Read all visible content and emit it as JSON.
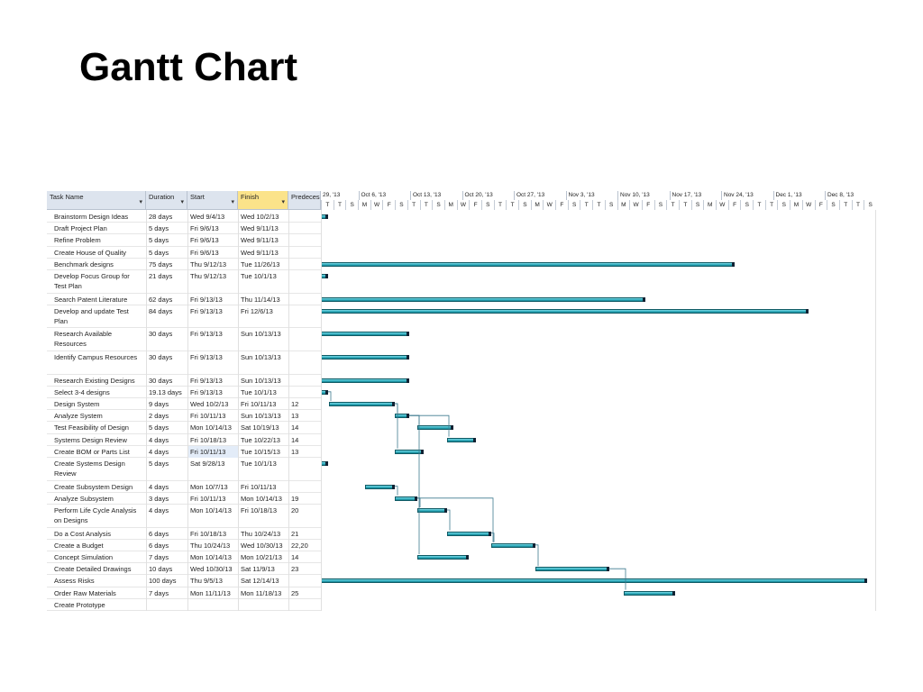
{
  "title": "Gantt Chart",
  "columns": {
    "task_name": "Task Name",
    "duration": "Duration",
    "start": "Start",
    "finish": "Finish",
    "predecessors": "Predecess"
  },
  "timeline": {
    "weeks": [
      "29, '13",
      "Oct 6, '13",
      "Oct 13, '13",
      "Oct 20, '13",
      "Oct 27, '13",
      "Nov 3, '13",
      "Nov 10, '13",
      "Nov 17, '13",
      "Nov 24, '13",
      "Dec 1, '13",
      "Dec 8, '13"
    ],
    "days": [
      "T",
      "T",
      "S",
      "M",
      "W",
      "F",
      "S",
      "T",
      "T",
      "S",
      "M",
      "W",
      "F",
      "S",
      "T",
      "T",
      "S",
      "M",
      "W",
      "F",
      "S",
      "T",
      "T",
      "S",
      "M",
      "W",
      "F",
      "S",
      "T",
      "T",
      "S",
      "M",
      "W",
      "F",
      "S",
      "T",
      "T",
      "S",
      "M",
      "W",
      "F",
      "S",
      "T",
      "T",
      "S"
    ]
  },
  "tasks": [
    {
      "name": "Brainstorm Design Ideas",
      "duration": "28 days",
      "start": "Wed 9/4/13",
      "finish": "Wed 10/2/13",
      "pred": "",
      "lines": 1,
      "bar": [
        356,
        364
      ]
    },
    {
      "name": "Draft Project Plan",
      "duration": "5 days",
      "start": "Fri 9/6/13",
      "finish": "Wed 9/11/13",
      "pred": "",
      "lines": 1,
      "bar": null
    },
    {
      "name": "Refine Problem",
      "duration": "5 days",
      "start": "Fri 9/6/13",
      "finish": "Wed 9/11/13",
      "pred": "",
      "lines": 1,
      "bar": null
    },
    {
      "name": "Create House of Quality",
      "duration": "5 days",
      "start": "Fri 9/6/13",
      "finish": "Wed 9/11/13",
      "pred": "",
      "lines": 1,
      "bar": null
    },
    {
      "name": "Benchmark designs",
      "duration": "75 days",
      "start": "Thu 9/12/13",
      "finish": "Tue 11/26/13",
      "pred": "",
      "lines": 1,
      "bar": [
        356,
        815
      ]
    },
    {
      "name": "Develop Focus Group for Test Plan",
      "duration": "21 days",
      "start": "Thu 9/12/13",
      "finish": "Tue 10/1/13",
      "pred": "",
      "lines": 2,
      "bar": [
        356,
        364
      ]
    },
    {
      "name": "Search Patent Literature",
      "duration": "62 days",
      "start": "Fri 9/13/13",
      "finish": "Thu 11/14/13",
      "pred": "",
      "lines": 1,
      "bar": [
        356,
        716
      ]
    },
    {
      "name": "Develop and update Test Plan",
      "duration": "84 days",
      "start": "Fri 9/13/13",
      "finish": "Fri 12/6/13",
      "pred": "",
      "lines": 2,
      "bar": [
        356,
        897
      ]
    },
    {
      "name": "Research Available Resources",
      "duration": "30 days",
      "start": "Fri 9/13/13",
      "finish": "Sun 10/13/13",
      "pred": "",
      "lines": 2,
      "bar": [
        356,
        454
      ]
    },
    {
      "name": "Identify Campus Resources",
      "duration": "30 days",
      "start": "Fri 9/13/13",
      "finish": "Sun 10/13/13",
      "pred": "",
      "lines": 2,
      "bar": [
        356,
        454
      ]
    },
    {
      "name": "Research Existing Designs",
      "duration": "30 days",
      "start": "Fri 9/13/13",
      "finish": "Sun 10/13/13",
      "pred": "",
      "lines": 1,
      "bar": [
        356,
        454
      ]
    },
    {
      "name": "Select 3-4 designs",
      "duration": "19.13 days",
      "start": "Fri 9/13/13",
      "finish": "Tue 10/1/13",
      "pred": "",
      "lines": 1,
      "bar": [
        356,
        364
      ]
    },
    {
      "name": "Design System",
      "duration": "9 days",
      "start": "Wed 10/2/13",
      "finish": "Fri 10/11/13",
      "pred": "12",
      "lines": 1,
      "bar": [
        365,
        438
      ]
    },
    {
      "name": "Analyze System",
      "duration": "2 days",
      "start": "Fri 10/11/13",
      "finish": "Sun 10/13/13",
      "pred": "13",
      "lines": 1,
      "bar": [
        438,
        454
      ]
    },
    {
      "name": "Test Feasibility of Design",
      "duration": "5 days",
      "start": "Mon 10/14/13",
      "finish": "Sat 10/19/13",
      "pred": "14",
      "lines": 1,
      "bar": [
        463,
        503
      ]
    },
    {
      "name": "Systems Design Review",
      "duration": "4 days",
      "start": "Fri 10/18/13",
      "finish": "Tue 10/22/13",
      "pred": "14",
      "lines": 1,
      "bar": [
        496,
        528
      ]
    },
    {
      "name": "Create BOM or Parts List",
      "duration": "4 days",
      "start": "Fri 10/11/13",
      "finish": "Tue 10/15/13",
      "pred": "13",
      "lines": 1,
      "bar": [
        438,
        470
      ],
      "selected": true
    },
    {
      "name": "Create Systems Design Review",
      "duration": "5 days",
      "start": "Sat 9/28/13",
      "finish": "Tue 10/1/13",
      "pred": "",
      "lines": 2,
      "bar": [
        356,
        364
      ]
    },
    {
      "name": "Create Subsystem Design",
      "duration": "4 days",
      "start": "Mon 10/7/13",
      "finish": "Fri 10/11/13",
      "pred": "",
      "lines": 1,
      "bar": [
        405,
        438
      ]
    },
    {
      "name": "Analyze Subsystem",
      "duration": "3 days",
      "start": "Fri 10/11/13",
      "finish": "Mon 10/14/13",
      "pred": "19",
      "lines": 1,
      "bar": [
        438,
        463
      ]
    },
    {
      "name": "Perform Life Cycle Analysis on Designs",
      "duration": "4 days",
      "start": "Mon 10/14/13",
      "finish": "Fri 10/18/13",
      "pred": "20",
      "lines": 2,
      "bar": [
        463,
        496
      ]
    },
    {
      "name": "Do a Cost Analysis",
      "duration": "6 days",
      "start": "Fri 10/18/13",
      "finish": "Thu 10/24/13",
      "pred": "21",
      "lines": 1,
      "bar": [
        496,
        545
      ]
    },
    {
      "name": "Create a Budget",
      "duration": "6 days",
      "start": "Thu 10/24/13",
      "finish": "Wed 10/30/13",
      "pred": "22,20",
      "lines": 1,
      "bar": [
        545,
        594
      ]
    },
    {
      "name": "Concept Simulation",
      "duration": "7 days",
      "start": "Mon 10/14/13",
      "finish": "Mon 10/21/13",
      "pred": "14",
      "lines": 1,
      "bar": [
        463,
        520
      ]
    },
    {
      "name": "Create Detailed Drawings",
      "duration": "10 days",
      "start": "Wed 10/30/13",
      "finish": "Sat 11/9/13",
      "pred": "23",
      "lines": 1,
      "bar": [
        594,
        676
      ]
    },
    {
      "name": "Assess Risks",
      "duration": "100 days",
      "start": "Thu 9/5/13",
      "finish": "Sat 12/14/13",
      "pred": "",
      "lines": 1,
      "bar": [
        356,
        962
      ]
    },
    {
      "name": "Order Raw Materials",
      "duration": "7 days",
      "start": "Mon 11/11/13",
      "finish": "Mon 11/18/13",
      "pred": "25",
      "lines": 1,
      "bar": [
        692,
        749
      ]
    },
    {
      "name": "Create Prototype",
      "duration": "",
      "start": "",
      "finish": "",
      "pred": "",
      "lines": 1,
      "bar": null
    }
  ]
}
